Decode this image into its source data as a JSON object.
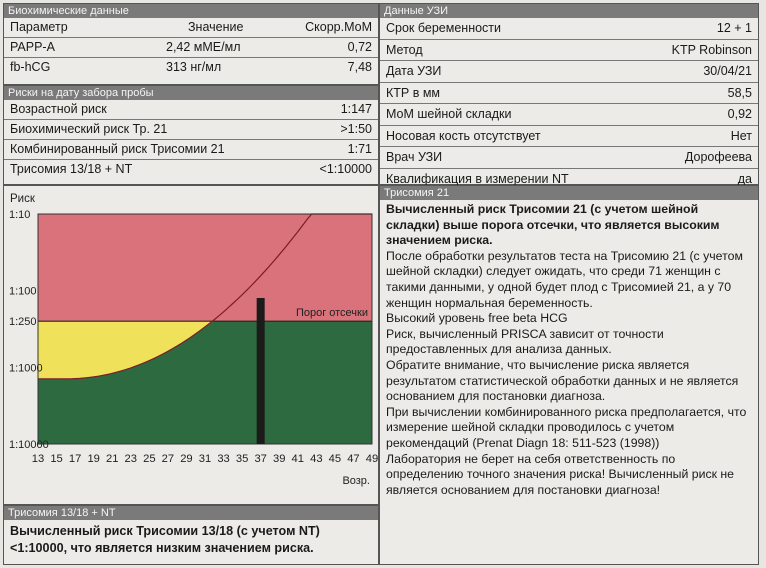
{
  "biochem": {
    "header": "Биохимические данные",
    "columns": {
      "param": "Параметр",
      "value": "Значение",
      "corr": "Скорр.МоМ"
    },
    "rows": [
      {
        "param": "PAPP-A",
        "value": "2,42 мМЕ/мл",
        "corr": "0,72"
      },
      {
        "param": "fb-hCG",
        "value": "313 нг/мл",
        "corr": "7,48"
      }
    ]
  },
  "risks": {
    "header": "Риски на дату забора пробы",
    "rows": [
      {
        "label": "Возрастной риск",
        "value": "1:147"
      },
      {
        "label": "Биохимический риск Тр. 21",
        "value": ">1:50"
      },
      {
        "label": "Комбинированный риск Трисомии 21",
        "value": "1:71"
      },
      {
        "label": "Трисомия 13/18 + NT",
        "value": "<1:10000"
      }
    ]
  },
  "ultrasound": {
    "header": "Данные УЗИ",
    "rows": [
      {
        "label": "Срок беременности",
        "value": "12 + 1"
      },
      {
        "label": "Метод",
        "value": "KTP Robinson"
      },
      {
        "label": "Дата УЗИ",
        "value": "30/04/21"
      },
      {
        "label": "КТР в мм",
        "value": "58,5"
      },
      {
        "label": "МоМ шейной складки",
        "value": "0,92"
      },
      {
        "label": "Носовая кость отсутствует",
        "value": "Нет"
      },
      {
        "label": "Врач УЗИ",
        "value": "Дорофеева"
      },
      {
        "label": "Квалификация в измерении NT",
        "value": "да"
      }
    ]
  },
  "chart_data": {
    "type": "area",
    "title": "Риск",
    "xlabel": "Возр.",
    "x_ticks": [
      "13",
      "15",
      "17",
      "19",
      "21",
      "23",
      "25",
      "27",
      "29",
      "31",
      "33",
      "35",
      "37",
      "39",
      "41",
      "43",
      "45",
      "47",
      "49"
    ],
    "y_ticks": [
      "1:10",
      "1:100",
      "1:250",
      "1:1000",
      "1:10000"
    ],
    "xlim": [
      13,
      49
    ],
    "ylim": [
      "1:10",
      "1:10000"
    ],
    "cutoff_label": "Порог отсечки",
    "cutoff": "1:250",
    "patient_age_marker": 37,
    "zones": [
      {
        "name": "high",
        "color": "#d9727a"
      },
      {
        "name": "intermediate",
        "color": "#efe25a"
      },
      {
        "name": "low",
        "color": "#2d6a3f"
      }
    ],
    "grid": false
  },
  "t21": {
    "header": "Трисомия 21",
    "bold_text": "Вычисленный риск Трисомии 21 (с учетом шейной складки) выше  порога отсечки, что является высоким значением риска.",
    "paragraphs": [
      "После обработки результатов теста на Трисомию 21 (с учетом шейной складки) следует ожидать, что среди 71 женщин с такими данными, у одной будет плод с Трисомией 21, а у 70 женщин нормальная беременность.",
      "Высокий уровень free beta HCG",
      "Риск, вычисленный PRISCA зависит от точности предоставленных для анализа данных.",
      "Обратите внимание, что вычисление риска является результатом статистической обработки данных и не является основанием для постановки диагноза.",
      "При вычислении комбинированного риска предполагается, что измерение шейной складки проводилось с учетом рекомендаций (Prenat Diagn 18: 511-523 (1998))",
      "Лаборатория не берет на себя ответственность по определению точного значения риска! Вычисленный риск не является основанием для постановки диагноза!"
    ]
  },
  "t1318": {
    "header": "Трисомия 13/18 + NT",
    "bold_text": "Вычисленный риск Трисомии 13/18 (с учетом NT) <1:10000, что является низким значением риска."
  }
}
